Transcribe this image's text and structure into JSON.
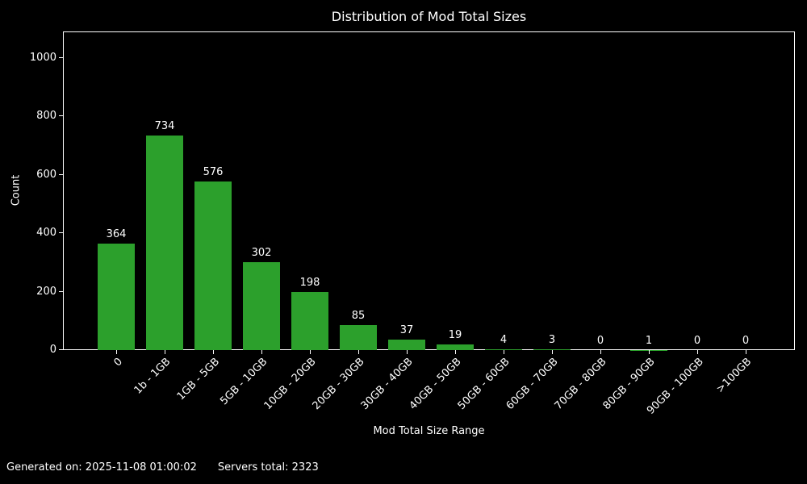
{
  "figure": {
    "background": "#000000",
    "text_color": "#ffffff",
    "axis_color": "#ffffff"
  },
  "chart_data": {
    "type": "bar",
    "title": "Distribution of Mod Total Sizes",
    "xlabel": "Mod Total Size Range",
    "ylabel": "Count",
    "categories": [
      "0",
      "1b - 1GB",
      "1GB - 5GB",
      "5GB - 10GB",
      "10GB - 20GB",
      "20GB - 30GB",
      "30GB - 40GB",
      "40GB - 50GB",
      "50GB - 60GB",
      "60GB - 70GB",
      "70GB - 80GB",
      "80GB - 90GB",
      "90GB - 100GB",
      ">100GB"
    ],
    "values": [
      364,
      734,
      576,
      302,
      198,
      85,
      37,
      19,
      4,
      3,
      0,
      1,
      0,
      0
    ],
    "yticks": [
      0,
      200,
      400,
      600,
      800,
      1000
    ],
    "ylim": [
      0,
      1090
    ],
    "bar_color": "#2ca02c",
    "grid": false,
    "legend": null
  },
  "footer": {
    "generated_on": "Generated on: 2025-11-08 01:00:02",
    "servers_total": "Servers total: 2323"
  }
}
